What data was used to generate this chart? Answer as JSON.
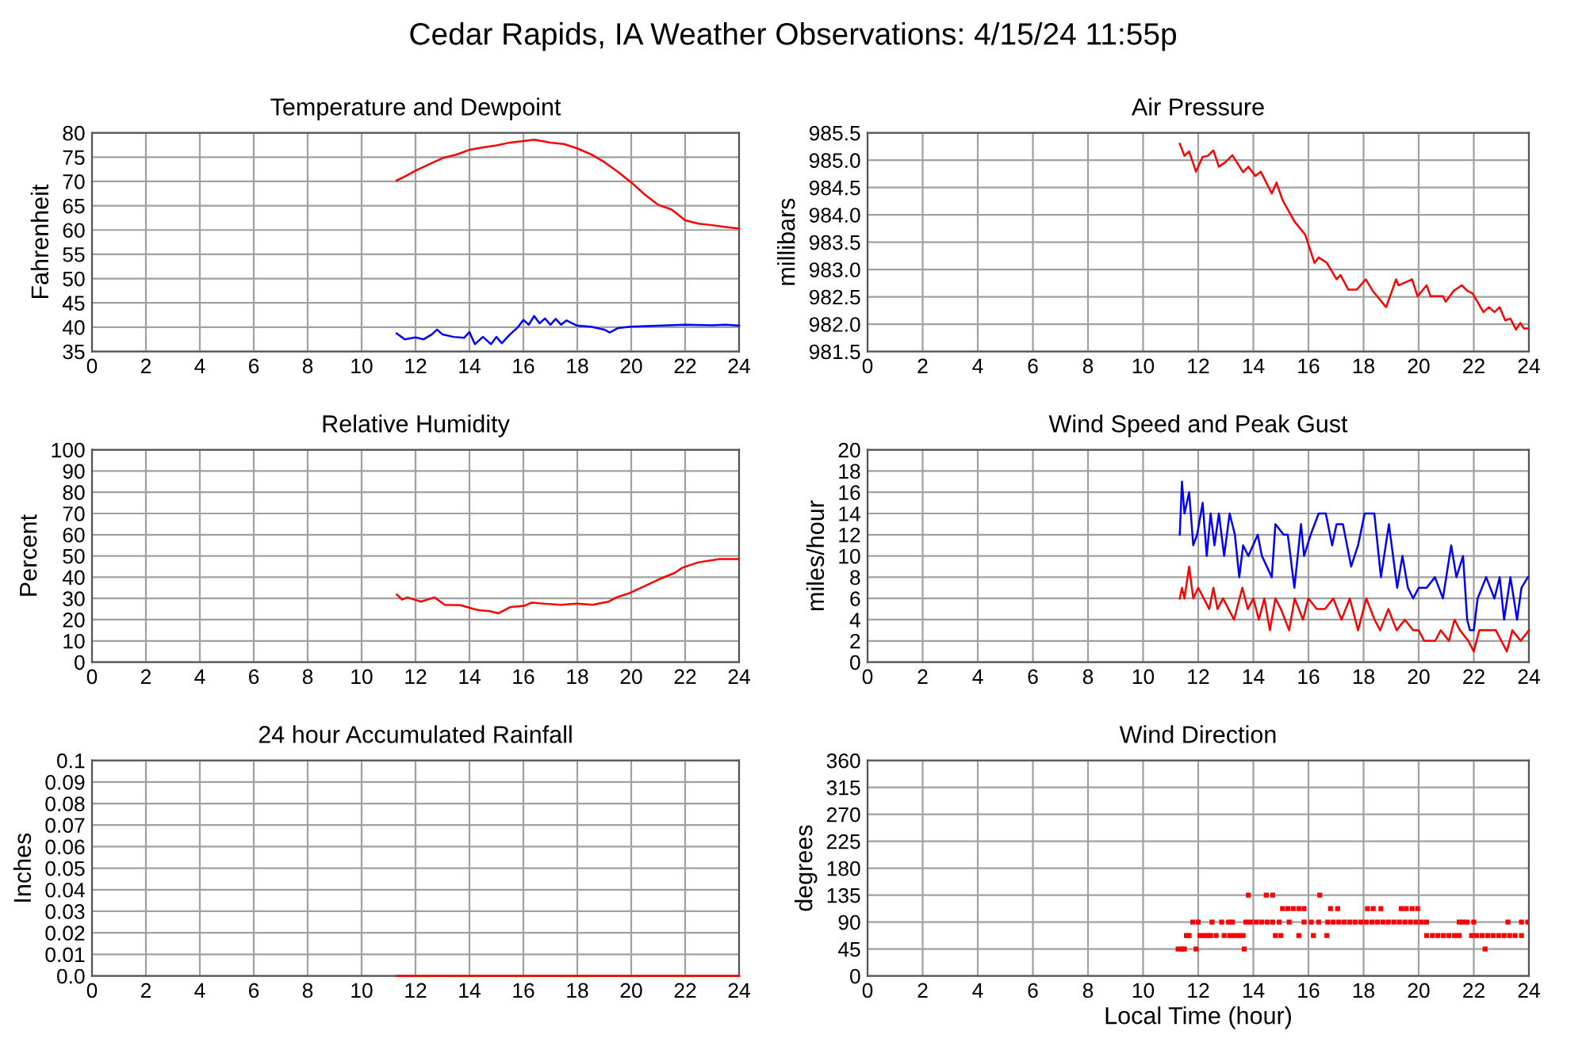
{
  "chart_data": [
    {
      "type": "line",
      "title": "Temperature and Dewpoint",
      "ylabel": "Fahrenheit",
      "annotations": [
        "Cedar Rapids, IA Weather Observations: 4/15/24 11:55p"
      ],
      "xlim": [
        0,
        24
      ],
      "xticks": [
        0,
        2,
        4,
        6,
        8,
        10,
        12,
        14,
        16,
        18,
        20,
        22,
        24
      ],
      "ylim": [
        35,
        80
      ],
      "yticks": [
        35,
        40,
        45,
        50,
        55,
        60,
        65,
        70,
        75,
        80
      ],
      "grid": true,
      "series": [
        {
          "color": "#ff0000",
          "x": [
            11.3,
            11.6,
            12,
            12.5,
            13,
            13.5,
            14,
            14.5,
            15,
            15.5,
            16,
            16.4,
            17,
            17.5,
            18,
            18.5,
            19,
            19.5,
            20,
            20.5,
            21,
            21.5,
            22,
            22.5,
            23,
            23.5,
            24
          ],
          "values": [
            70.2,
            71,
            72.2,
            73.5,
            74.8,
            75.5,
            76.5,
            77,
            77.4,
            78,
            78.3,
            78.6,
            78,
            77.7,
            76.8,
            75.6,
            74,
            72,
            69.8,
            67.3,
            65.2,
            64.2,
            62,
            61.3,
            61,
            60.6,
            60.3
          ]
        },
        {
          "color": "#0000ff",
          "x": [
            11.3,
            11.6,
            12,
            12.3,
            12.6,
            12.8,
            13,
            13.4,
            13.8,
            14,
            14.2,
            14.5,
            14.8,
            15,
            15.2,
            15.5,
            15.8,
            16,
            16.2,
            16.4,
            16.6,
            16.8,
            17,
            17.2,
            17.4,
            17.6,
            18,
            18.5,
            19,
            19.2,
            19.5,
            20,
            21,
            22,
            23,
            23.5,
            24
          ],
          "values": [
            38.7,
            37.5,
            37.9,
            37.5,
            38.5,
            39.5,
            38.5,
            38,
            37.8,
            39,
            36.5,
            38,
            36.5,
            38,
            36.7,
            38.5,
            40,
            41.5,
            40.5,
            42.3,
            40.8,
            41.8,
            40.5,
            41.7,
            40.5,
            41.4,
            40.3,
            40.1,
            39.5,
            38.9,
            39.8,
            40.1,
            40.3,
            40.5,
            40.4,
            40.5,
            40.3
          ]
        }
      ]
    },
    {
      "type": "line",
      "title": "Air Pressure",
      "ylabel": "millibars",
      "xlim": [
        0,
        24
      ],
      "xticks": [
        0,
        2,
        4,
        6,
        8,
        10,
        12,
        14,
        16,
        18,
        20,
        22,
        24
      ],
      "ylim": [
        981.5,
        985.5
      ],
      "yticks": [
        981.5,
        {
          "value": 982,
          "label": "982.0"
        },
        982.5,
        {
          "value": 983,
          "label": "983.0"
        },
        983.5,
        {
          "value": 984,
          "label": "984.0"
        },
        984.5,
        {
          "value": 985,
          "label": "985.0"
        },
        985.5
      ],
      "grid": true,
      "series": [
        {
          "color": "#ff0000",
          "x": [
            11.33,
            11.5,
            11.67,
            11.92,
            12.16,
            12.35,
            12.55,
            12.75,
            12.98,
            13.24,
            13.63,
            13.82,
            14.08,
            14.27,
            14.67,
            14.84,
            15.06,
            15.49,
            15.88,
            16.22,
            16.37,
            16.67,
            17.02,
            17.16,
            17.45,
            17.75,
            18.08,
            18.33,
            18.82,
            19.18,
            19.27,
            19.76,
            19.96,
            20.29,
            20.43,
            20.88,
            20.98,
            21.27,
            21.57,
            21.76,
            21.96,
            22.35,
            22.55,
            22.75,
            22.94,
            23.14,
            23.33,
            23.53,
            23.69,
            23.82,
            23.96
          ],
          "values": [
            985.3,
            985.08,
            985.16,
            984.79,
            985.06,
            985.08,
            985.18,
            984.88,
            984.96,
            985.09,
            984.78,
            984.88,
            984.71,
            984.79,
            984.39,
            984.59,
            984.27,
            983.88,
            983.64,
            983.12,
            983.22,
            983.12,
            982.82,
            982.9,
            982.63,
            982.63,
            982.82,
            982.61,
            982.31,
            982.82,
            982.71,
            982.82,
            982.51,
            982.71,
            982.51,
            982.51,
            982.41,
            982.61,
            982.71,
            982.61,
            982.56,
            982.22,
            982.31,
            982.22,
            982.31,
            982.07,
            982.1,
            981.9,
            982.02,
            981.92,
            981.92
          ]
        }
      ]
    },
    {
      "type": "line",
      "title": "Relative Humidity",
      "ylabel": "Percent",
      "xlim": [
        0,
        24
      ],
      "xticks": [
        0,
        2,
        4,
        6,
        8,
        10,
        12,
        14,
        16,
        18,
        20,
        22,
        24
      ],
      "ylim": [
        0,
        100
      ],
      "yticks": [
        0,
        10,
        20,
        30,
        40,
        50,
        60,
        70,
        80,
        90,
        100
      ],
      "grid": true,
      "series": [
        {
          "color": "#ff0000",
          "x": [
            11.31,
            11.5,
            11.7,
            12.2,
            12.7,
            13.08,
            13.67,
            14.16,
            14.35,
            14.75,
            15.08,
            15.53,
            16.02,
            16.31,
            16.8,
            17.39,
            17.98,
            18.57,
            19.16,
            19.45,
            19.94,
            20.53,
            21.12,
            21.61,
            21.9,
            22.49,
            23.27,
            23.96
          ],
          "values": [
            31.8,
            29.5,
            30.5,
            28.5,
            30.5,
            27,
            26.8,
            25,
            24.5,
            24,
            23,
            26,
            26.5,
            28,
            27.5,
            27,
            27.5,
            27,
            28.5,
            30.5,
            32.5,
            36,
            39.5,
            42,
            44.5,
            47,
            48.5,
            48.5
          ]
        }
      ]
    },
    {
      "type": "line",
      "title": "Wind Speed and Peak Gust",
      "ylabel": "miles/hour",
      "xlim": [
        0,
        24
      ],
      "xticks": [
        0,
        2,
        4,
        6,
        8,
        10,
        12,
        14,
        16,
        18,
        20,
        22,
        24
      ],
      "ylim": [
        0,
        20
      ],
      "yticks": [
        0,
        2,
        4,
        6,
        8,
        10,
        12,
        14,
        16,
        18,
        20
      ],
      "grid": true,
      "series": [
        {
          "color": "#0000ff",
          "x": [
            11.33,
            11.41,
            11.5,
            11.67,
            11.82,
            11.96,
            12.16,
            12.31,
            12.45,
            12.59,
            12.75,
            12.94,
            13.14,
            13.33,
            13.49,
            13.63,
            13.82,
            14.16,
            14.31,
            14.67,
            14.8,
            15.1,
            15.25,
            15.49,
            15.73,
            15.84,
            16.08,
            16.37,
            16.63,
            16.86,
            17.02,
            17.25,
            17.55,
            17.8,
            18.04,
            18.39,
            18.63,
            18.92,
            19.22,
            19.41,
            19.61,
            19.8,
            20,
            20.29,
            20.59,
            20.88,
            21.18,
            21.37,
            21.61,
            21.76,
            21.86,
            22,
            22.14,
            22.45,
            22.75,
            22.94,
            23.1,
            23.33,
            23.57,
            23.73,
            23.96
          ],
          "values": [
            12,
            17,
            14,
            16,
            11,
            12,
            15,
            10,
            14,
            11,
            14,
            10,
            14,
            12,
            8,
            11,
            10,
            12,
            10,
            8,
            13,
            12,
            12,
            7,
            13,
            10,
            12,
            14,
            14,
            11,
            13,
            13,
            9,
            11,
            14,
            14,
            8,
            13,
            7,
            10,
            7,
            6,
            7,
            7,
            8,
            6,
            11,
            8,
            10,
            4,
            3,
            3,
            6,
            8,
            6,
            8,
            4,
            8,
            4,
            7,
            8
          ]
        },
        {
          "color": "#ff0000",
          "x": [
            11.33,
            11.41,
            11.5,
            11.67,
            11.82,
            12,
            12.2,
            12.4,
            12.55,
            12.7,
            12.9,
            13.1,
            13.3,
            13.6,
            13.8,
            14,
            14.2,
            14.4,
            14.6,
            14.8,
            15,
            15.3,
            15.5,
            15.8,
            16,
            16.3,
            16.6,
            16.9,
            17.2,
            17.5,
            17.8,
            18.1,
            18.4,
            18.6,
            18.9,
            19.2,
            19.5,
            19.8,
            20,
            20.2,
            20.6,
            20.8,
            21.1,
            21.3,
            21.5,
            21.8,
            22,
            22.2,
            22.5,
            22.8,
            23,
            23.2,
            23.4,
            23.7,
            24
          ],
          "values": [
            6,
            7,
            6,
            9,
            6,
            7,
            6,
            5,
            7,
            5,
            6,
            5,
            4,
            7,
            5,
            6,
            4,
            6,
            3,
            6,
            5,
            3,
            6,
            4,
            6,
            5,
            5,
            6,
            4,
            6,
            3,
            6,
            4,
            3,
            5,
            3,
            4,
            3,
            3,
            2,
            2,
            3,
            2,
            4,
            3,
            2,
            1,
            3,
            3,
            3,
            2,
            1,
            3,
            2,
            3
          ]
        }
      ]
    },
    {
      "type": "line",
      "title": "24 hour Accumulated Rainfall",
      "ylabel": "Inches",
      "xlim": [
        0,
        24
      ],
      "xticks": [
        0,
        2,
        4,
        6,
        8,
        10,
        12,
        14,
        16,
        18,
        20,
        22,
        24
      ],
      "ylim": [
        0,
        0.1
      ],
      "yticks": [
        {
          "value": 0,
          "label": "0.0"
        },
        0.01,
        0.02,
        0.03,
        0.04,
        0.05,
        0.06,
        0.07,
        0.08,
        0.09,
        0.1
      ],
      "grid": true,
      "series": [
        {
          "color": "#ff0000",
          "x": [
            11.3,
            14,
            16,
            18,
            20,
            22,
            24
          ],
          "values": [
            0,
            0,
            0,
            0,
            0,
            0,
            0
          ]
        }
      ]
    },
    {
      "type": "scatter",
      "title": "Wind Direction",
      "ylabel": "degrees",
      "xlabel": "Local Time (hour)",
      "xlim": [
        0,
        24
      ],
      "xticks": [
        0,
        2,
        4,
        6,
        8,
        10,
        12,
        14,
        16,
        18,
        20,
        22,
        24
      ],
      "ylim": [
        0,
        360
      ],
      "yticks": [
        0,
        45,
        90,
        135,
        180,
        225,
        270,
        315,
        360
      ],
      "grid": true,
      "marker": "square",
      "series": [
        {
          "color": "#ff0000",
          "x": [
            11.27,
            11.4,
            11.5,
            11.92,
            13.67,
            22.41,
            11.57,
            11.67,
            12.06,
            12.2,
            12.35,
            12.45,
            12.65,
            12.94,
            13.14,
            13.3,
            13.47,
            13.63,
            14.8,
            15.0,
            15.65,
            16.18,
            16.67,
            20.29,
            20.5,
            20.7,
            20.9,
            21.1,
            21.3,
            21.47,
            21.92,
            22.1,
            22.3,
            22.5,
            22.7,
            22.9,
            23.1,
            23.3,
            23.5,
            23.73,
            11.8,
            12.0,
            12.5,
            12.85,
            13.1,
            13.24,
            13.73,
            13.9,
            14.1,
            14.3,
            14.5,
            14.7,
            14.94,
            15.3,
            15.84,
            16.1,
            16.37,
            16.7,
            16.9,
            17.1,
            17.3,
            17.5,
            17.7,
            17.9,
            18.1,
            18.3,
            18.5,
            18.7,
            18.9,
            19.1,
            19.3,
            19.5,
            19.7,
            19.9,
            20.1,
            20.29,
            21.47,
            21.6,
            21.76,
            22.0,
            23.24,
            23.73,
            23.96,
            15.06,
            15.25,
            15.45,
            15.65,
            15.84,
            16.8,
            17.06,
            18.14,
            18.35,
            18.63,
            19.37,
            19.55,
            19.76,
            19.96,
            13.82,
            14.47,
            14.7,
            16.41
          ],
          "values": [
            45,
            45,
            45,
            45,
            45,
            45,
            67.5,
            67.5,
            67.5,
            67.5,
            67.5,
            67.5,
            67.5,
            67.5,
            67.5,
            67.5,
            67.5,
            67.5,
            67.5,
            67.5,
            67.5,
            67.5,
            67.5,
            67.5,
            67.5,
            67.5,
            67.5,
            67.5,
            67.5,
            67.5,
            67.5,
            67.5,
            67.5,
            67.5,
            67.5,
            67.5,
            67.5,
            67.5,
            67.5,
            67.5,
            90,
            90,
            90,
            90,
            90,
            90,
            90,
            90,
            90,
            90,
            90,
            90,
            90,
            90,
            90,
            90,
            90,
            90,
            90,
            90,
            90,
            90,
            90,
            90,
            90,
            90,
            90,
            90,
            90,
            90,
            90,
            90,
            90,
            90,
            90,
            90,
            90,
            90,
            90,
            90,
            90,
            90,
            90,
            112.5,
            112.5,
            112.5,
            112.5,
            112.5,
            112.5,
            112.5,
            112.5,
            112.5,
            112.5,
            112.5,
            112.5,
            112.5,
            112.5,
            135,
            135,
            135,
            135
          ]
        }
      ]
    }
  ]
}
